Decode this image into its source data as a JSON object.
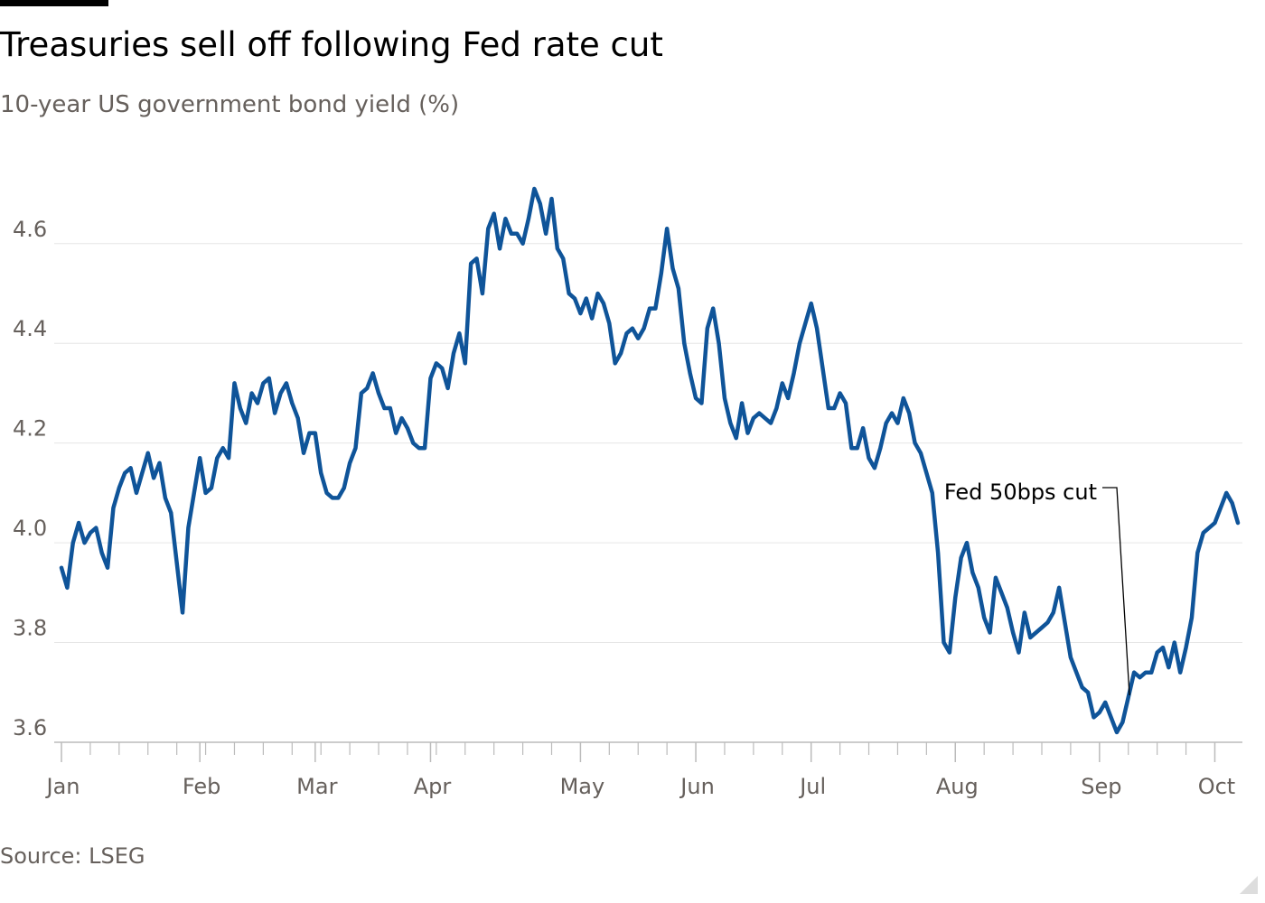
{
  "chart_data": {
    "type": "line",
    "title": "Treasuries sell off following Fed rate cut",
    "subtitle": "10-year US government bond yield (%)",
    "source": "Source: LSEG",
    "annotation": "Fed 50bps cut",
    "categories": [
      "Jan",
      null,
      null,
      null,
      null,
      null,
      null,
      null,
      null,
      null,
      null,
      null,
      null,
      null,
      null,
      null,
      null,
      null,
      null,
      null,
      null,
      null,
      null,
      null,
      "Feb",
      null,
      null,
      null,
      null,
      null,
      null,
      null,
      null,
      null,
      null,
      null,
      null,
      null,
      null,
      null,
      null,
      null,
      null,
      null,
      "Mar",
      null,
      null,
      null,
      null,
      null,
      null,
      null,
      null,
      null,
      null,
      null,
      null,
      null,
      null,
      null,
      null,
      null,
      null,
      null,
      "Apr",
      null,
      null,
      null,
      null,
      null,
      null,
      null,
      null,
      null,
      null,
      null,
      null,
      null,
      null,
      null,
      null,
      null,
      null,
      null,
      null,
      null,
      null,
      null,
      null,
      null,
      "May",
      null,
      null,
      null,
      null,
      null,
      null,
      null,
      null,
      null,
      null,
      null,
      null,
      null,
      null,
      null,
      null,
      null,
      null,
      null,
      "Jun",
      null,
      null,
      null,
      null,
      null,
      null,
      null,
      null,
      null,
      null,
      null,
      null,
      null,
      null,
      null,
      null,
      null,
      null,
      null,
      "Jul",
      null,
      null,
      null,
      null,
      null,
      null,
      null,
      null,
      null,
      null,
      null,
      null,
      null,
      null,
      null,
      null,
      null,
      null,
      null,
      null,
      null,
      null,
      null,
      null,
      "Aug",
      null,
      null,
      null,
      null,
      null,
      null,
      null,
      null,
      null,
      null,
      null,
      null,
      null,
      null,
      null,
      null,
      null,
      null,
      null,
      null,
      null,
      null,
      null,
      null,
      "Sep",
      null,
      null,
      null,
      null,
      null,
      null,
      null,
      null,
      null,
      null,
      null,
      null,
      null,
      null,
      null,
      null,
      null,
      null,
      null,
      "Oct",
      null,
      null,
      null,
      null
    ],
    "series": [
      {
        "name": "10-year US government bond yield",
        "color": "#0f5499",
        "values": [
          3.95,
          3.91,
          4.0,
          4.04,
          4.0,
          4.02,
          4.03,
          3.98,
          3.95,
          4.07,
          4.11,
          4.14,
          4.15,
          4.1,
          4.14,
          4.18,
          4.13,
          4.16,
          4.09,
          4.06,
          3.96,
          3.86,
          4.03,
          4.1,
          4.17,
          4.1,
          4.11,
          4.17,
          4.19,
          4.17,
          4.32,
          4.27,
          4.24,
          4.3,
          4.28,
          4.32,
          4.33,
          4.26,
          4.3,
          4.32,
          4.28,
          4.25,
          4.18,
          4.22,
          4.22,
          4.14,
          4.1,
          4.09,
          4.09,
          4.11,
          4.16,
          4.19,
          4.3,
          4.31,
          4.34,
          4.3,
          4.27,
          4.27,
          4.22,
          4.25,
          4.23,
          4.2,
          4.19,
          4.19,
          4.33,
          4.36,
          4.35,
          4.31,
          4.38,
          4.42,
          4.36,
          4.56,
          4.57,
          4.5,
          4.63,
          4.66,
          4.59,
          4.65,
          4.62,
          4.62,
          4.6,
          4.65,
          4.71,
          4.68,
          4.62,
          4.69,
          4.59,
          4.57,
          4.5,
          4.49,
          4.46,
          4.49,
          4.45,
          4.5,
          4.48,
          4.44,
          4.36,
          4.38,
          4.42,
          4.43,
          4.41,
          4.43,
          4.47,
          4.47,
          4.54,
          4.63,
          4.55,
          4.51,
          4.4,
          4.34,
          4.29,
          4.28,
          4.43,
          4.47,
          4.4,
          4.29,
          4.24,
          4.21,
          4.28,
          4.22,
          4.25,
          4.26,
          4.25,
          4.24,
          4.27,
          4.32,
          4.29,
          4.34,
          4.4,
          4.44,
          4.48,
          4.43,
          4.35,
          4.27,
          4.27,
          4.3,
          4.28,
          4.19,
          4.19,
          4.23,
          4.17,
          4.15,
          4.19,
          4.24,
          4.26,
          4.24,
          4.29,
          4.26,
          4.2,
          4.18,
          4.14,
          4.1,
          3.98,
          3.8,
          3.78,
          3.89,
          3.97,
          4.0,
          3.94,
          3.91,
          3.85,
          3.82,
          3.93,
          3.9,
          3.87,
          3.82,
          3.78,
          3.86,
          3.81,
          3.82,
          3.83,
          3.84,
          3.86,
          3.91,
          3.84,
          3.77,
          3.74,
          3.71,
          3.7,
          3.65,
          3.66,
          3.68,
          3.65,
          3.62,
          3.64,
          3.69,
          3.74,
          3.73,
          3.74,
          3.74,
          3.78,
          3.79,
          3.75,
          3.8,
          3.74,
          3.79,
          3.85,
          3.98,
          4.02,
          4.03,
          4.04,
          4.07,
          4.1,
          4.08,
          4.04
        ]
      }
    ],
    "ylim": [
      3.6,
      4.73
    ],
    "yticks": [
      3.6,
      3.8,
      {
        "value": 4,
        "label": "4.0"
      },
      4.2,
      4.4,
      4.6
    ],
    "grid": true
  }
}
